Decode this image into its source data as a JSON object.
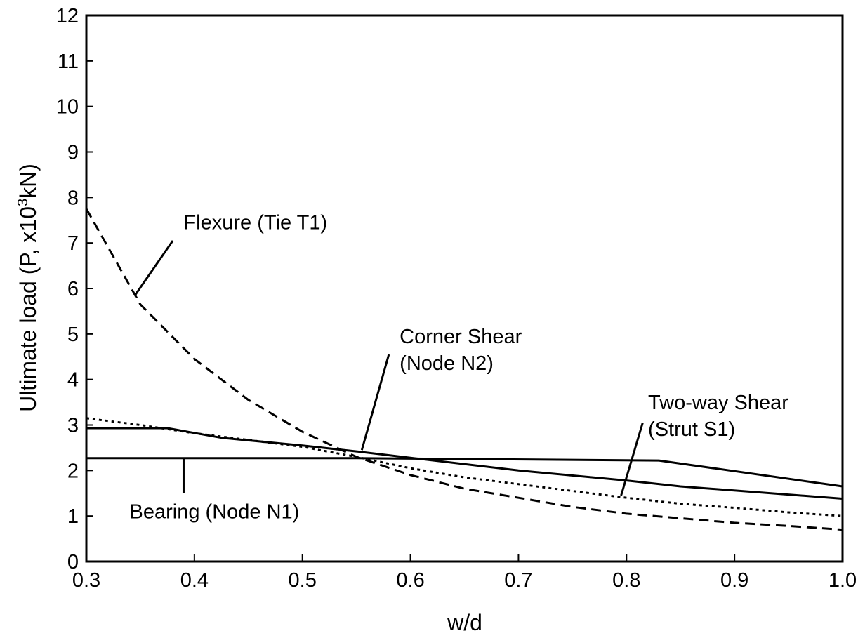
{
  "chart_data": {
    "type": "line",
    "xlabel": "w/d",
    "ylabel": {
      "main": "Ultimate load (P, x10",
      "sup": "3",
      "tail": "kN)"
    },
    "xlim": [
      0.3,
      1.0
    ],
    "ylim": [
      0,
      12
    ],
    "xticks": [
      "0.3",
      "0.4",
      "0.5",
      "0.6",
      "0.7",
      "0.8",
      "0.9",
      "1.0"
    ],
    "yticks": [
      "0",
      "1",
      "2",
      "3",
      "4",
      "5",
      "6",
      "7",
      "8",
      "9",
      "10",
      "11",
      "12"
    ],
    "grid": false,
    "series": [
      {
        "key": "flexure",
        "style": "dashed",
        "x": [
          0.3,
          0.35,
          0.4,
          0.45,
          0.5,
          0.55,
          0.6,
          0.65,
          0.7,
          0.75,
          0.8,
          0.85,
          0.9,
          0.95,
          1.0
        ],
        "y": [
          7.75,
          5.65,
          4.45,
          3.55,
          2.85,
          2.3,
          1.9,
          1.6,
          1.4,
          1.2,
          1.05,
          0.95,
          0.85,
          0.78,
          0.7
        ]
      },
      {
        "key": "strut",
        "style": "dotted",
        "x": [
          0.3,
          0.35,
          0.4,
          0.45,
          0.5,
          0.55,
          0.6,
          0.65,
          0.7,
          0.75,
          0.8,
          0.85,
          0.9,
          0.95,
          1.0
        ],
        "y": [
          3.15,
          3.0,
          2.82,
          2.67,
          2.52,
          2.3,
          2.05,
          1.85,
          1.7,
          1.55,
          1.4,
          1.27,
          1.18,
          1.08,
          1.0
        ]
      },
      {
        "key": "corner",
        "style": "solid",
        "x": [
          0.3,
          0.375,
          0.425,
          0.5,
          0.55,
          0.6,
          0.7,
          0.8,
          0.85,
          1.0
        ],
        "y": [
          2.93,
          2.93,
          2.72,
          2.55,
          2.42,
          2.28,
          2.0,
          1.78,
          1.65,
          1.38
        ]
      },
      {
        "key": "bearing",
        "style": "solid",
        "x": [
          0.3,
          0.55,
          0.83,
          1.0
        ],
        "y": [
          2.27,
          2.27,
          2.22,
          1.65
        ]
      }
    ],
    "annotations": [
      {
        "key": "flexure",
        "lines": [
          "Flexure (Tie T1)"
        ],
        "text_at": [
          0.39,
          7.3
        ],
        "leader": [
          [
            0.345,
            5.85
          ],
          [
            0.38,
            7.05
          ]
        ]
      },
      {
        "key": "corner",
        "lines": [
          "Corner Shear",
          "(Node N2)"
        ],
        "text_at": [
          0.59,
          4.8
        ],
        "leader": [
          [
            0.555,
            2.45
          ],
          [
            0.58,
            4.55
          ]
        ]
      },
      {
        "key": "strut",
        "lines": [
          "Two-way Shear",
          "(Strut S1)"
        ],
        "text_at": [
          0.82,
          3.35
        ],
        "leader": [
          [
            0.795,
            1.45
          ],
          [
            0.815,
            3.05
          ]
        ]
      },
      {
        "key": "bearing",
        "lines": [
          "Bearing (Node N1)"
        ],
        "text_at": [
          0.34,
          0.95
        ],
        "leader": [
          [
            0.39,
            2.27
          ],
          [
            0.39,
            1.5
          ]
        ]
      }
    ]
  }
}
